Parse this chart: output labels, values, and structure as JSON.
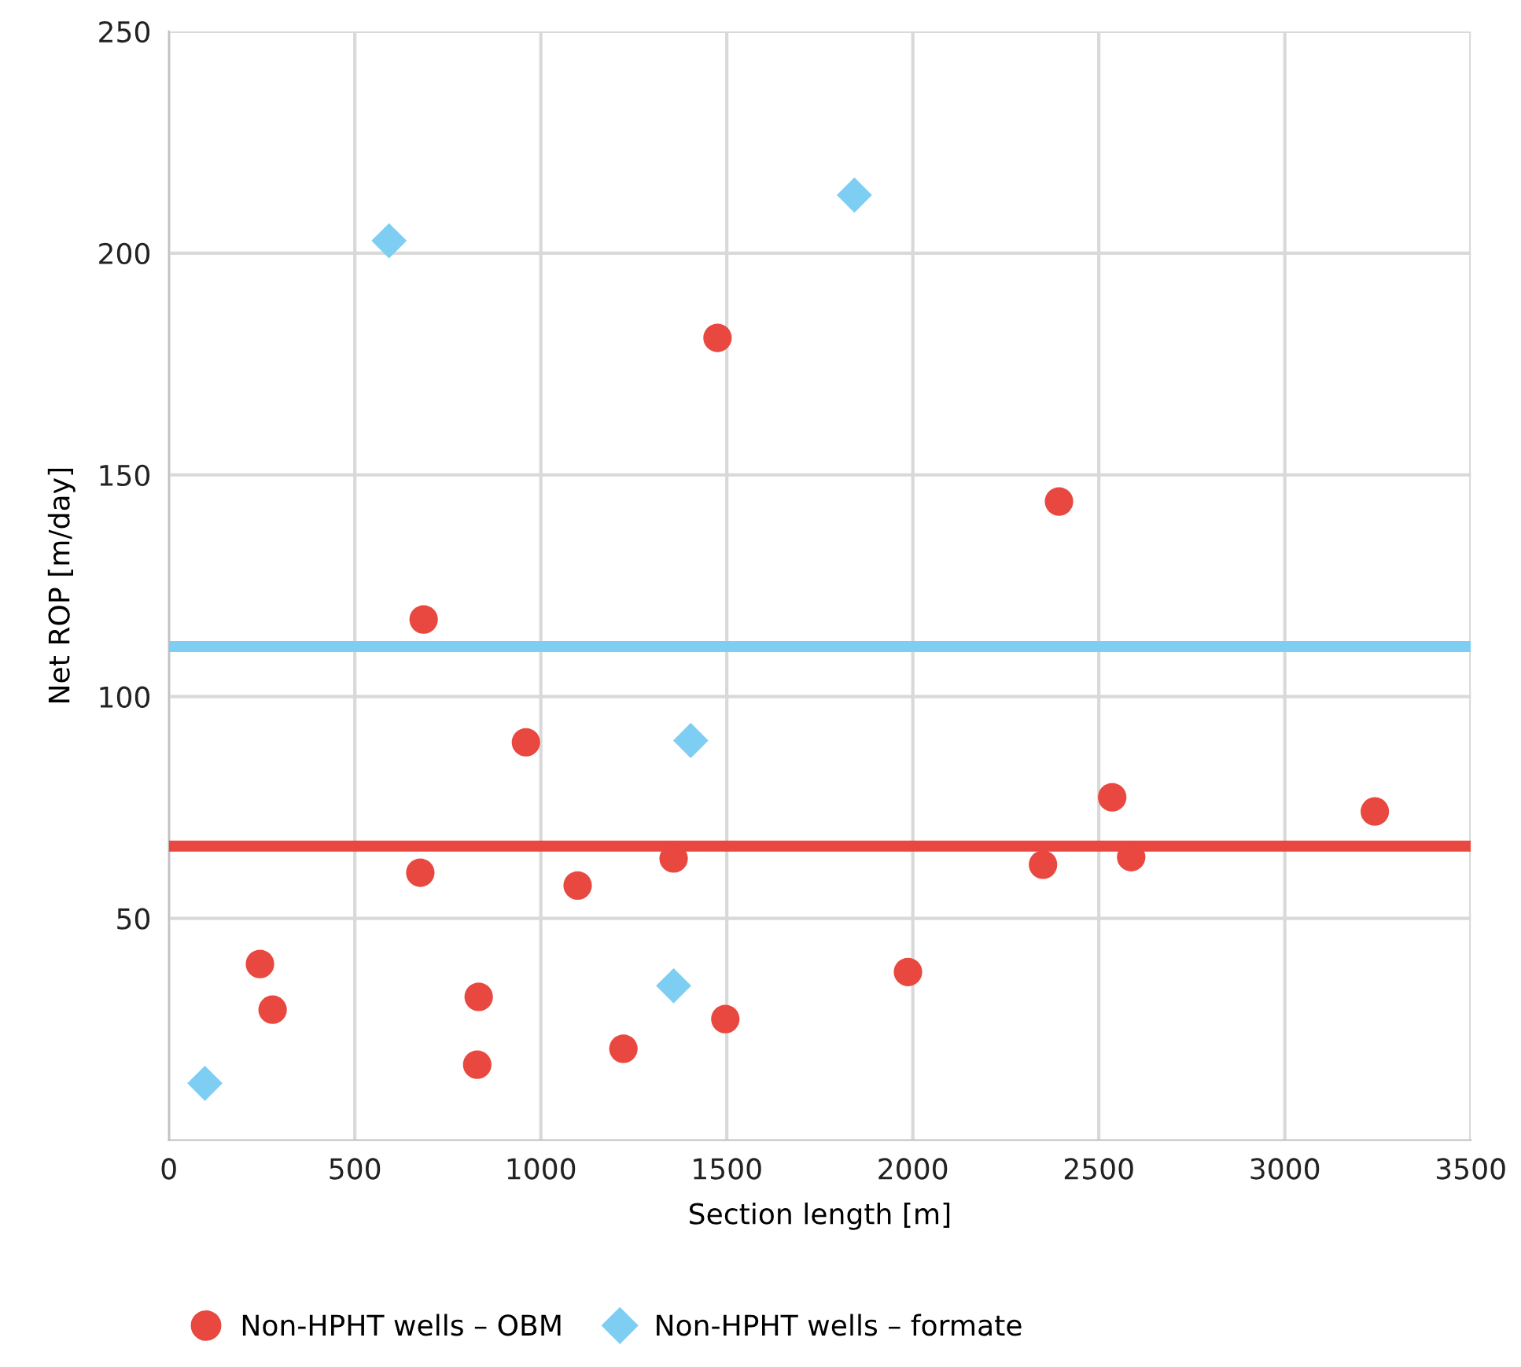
{
  "chart_data": {
    "type": "scatter",
    "xlabel": "Section length [m]",
    "ylabel": "Net ROP [m/day]",
    "xlim": [
      0,
      3500
    ],
    "xticks": [
      0,
      500,
      1000,
      1500,
      2000,
      2500,
      3000,
      3500
    ],
    "ylim": [
      0,
      250
    ],
    "yticks": [
      50,
      100,
      150,
      200,
      250
    ],
    "grid": true,
    "legend": "bottom",
    "series": [
      {
        "name": "Non-HPHT wells – OBM",
        "color": "#e8483f",
        "marker": "circle",
        "x": [
          245,
          279,
          685,
          676,
          833,
          829,
          960,
          1099,
          1222,
          1357,
          1475,
          1496,
          1987,
          2350,
          2393,
          2536,
          2587,
          3242
        ],
        "values": [
          39.7,
          29.4,
          117.4,
          60.3,
          32.3,
          17.0,
          89.7,
          57.4,
          20.6,
          63.5,
          180.9,
          27.3,
          37.9,
          62.1,
          144.0,
          77.3,
          63.8,
          74.1
        ]
      },
      {
        "name": "Non-HPHT wells – formate",
        "color": "#7ecef4",
        "marker": "diamond",
        "x": [
          97,
          592,
          1843,
          1403,
          1357
        ],
        "values": [
          12.8,
          202.8,
          213.1,
          90.1,
          34.8
        ]
      }
    ],
    "ref_lines": [
      {
        "axis": "y",
        "value": 111.3,
        "color": "#7ecef4"
      },
      {
        "axis": "y",
        "value": 66.3,
        "color": "#e8483f"
      }
    ]
  }
}
